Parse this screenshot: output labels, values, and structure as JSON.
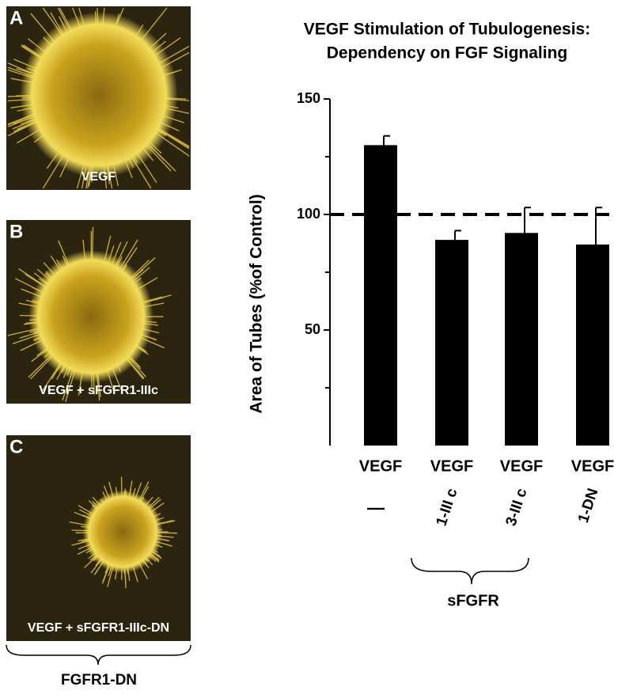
{
  "panels": [
    {
      "letter": "A",
      "caption": "VEGF"
    },
    {
      "letter": "B",
      "caption": "VEGF + sFGFR1-IIIc"
    },
    {
      "letter": "C",
      "caption": "VEGF + sFGFR1-IIIc-DN"
    }
  ],
  "panels_group": "FGFR1-DN",
  "chart_data": {
    "type": "bar",
    "title": [
      "VEGF Stimulation of Tubulogenesis:",
      "Dependency on FGF Signaling"
    ],
    "y_label": "Area of Tubes (%of Control)",
    "categories": [
      "VEGF",
      "VEGF",
      "VEGF",
      "VEGF"
    ],
    "sublabels": [
      "—",
      "1-III c",
      "3-III c",
      "1-DN"
    ],
    "group_label": "sFGFR",
    "values": [
      130,
      89,
      92,
      87
    ],
    "errors": [
      4,
      4,
      11,
      16
    ],
    "color": "#000000",
    "reference_line": 100,
    "ylim": [
      0,
      150
    ],
    "yticks": [
      50,
      100,
      150
    ],
    "minor_yticks": [
      25,
      75,
      125
    ]
  }
}
